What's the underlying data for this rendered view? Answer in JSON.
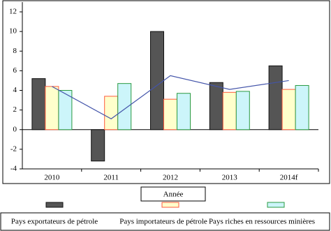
{
  "chart_data": {
    "type": "bar",
    "x_label": "Année",
    "categories": [
      "2010",
      "2011",
      "2012",
      "2013",
      "2014f"
    ],
    "ylim": [
      -4,
      12
    ],
    "yticks": [
      -4,
      -2,
      0,
      2,
      4,
      6,
      8,
      10,
      12
    ],
    "series": [
      {
        "name": "Pays exportateurs de pétrole",
        "type": "bar",
        "color": "#555555",
        "stroke": "#111111",
        "values": [
          5.2,
          -3.2,
          10,
          4.8,
          6.5
        ]
      },
      {
        "name": "Pays importateurs de pétrole",
        "type": "bar",
        "color": "#ffffcc",
        "stroke": "#ff5a3c",
        "values": [
          4.4,
          3.4,
          3.1,
          3.8,
          4.1
        ]
      },
      {
        "name": "Pays riches en ressources minières",
        "type": "bar",
        "color": "#ccf5fa",
        "stroke": "#2a9a40",
        "values": [
          4.0,
          4.7,
          3.7,
          3.9,
          4.5
        ]
      },
      {
        "type": "line",
        "color": "#4455aa",
        "values": [
          4.4,
          1.1,
          5.5,
          4.1,
          5.0
        ]
      }
    ]
  }
}
